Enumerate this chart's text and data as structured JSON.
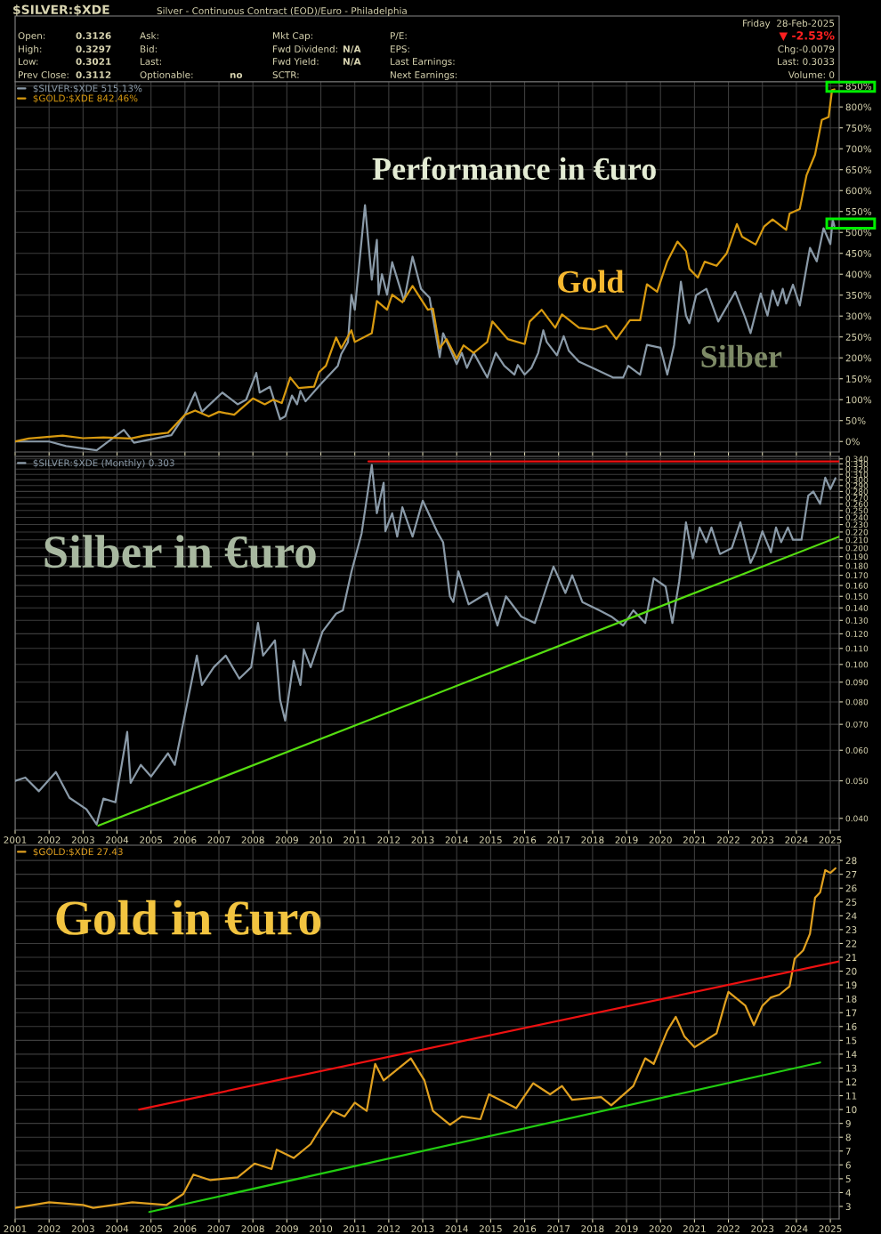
{
  "chart_data": [
    {
      "type": "other",
      "title": "$SILVER:$XDE",
      "subtitle": "Silver - Continuous Contract (EOD)/Euro - Philadelphia",
      "annotations": [
        "Friday  28-Feb-2025",
        "▼ -2.53%",
        "Chg:-0.0079",
        "Last: 0.3033",
        "Volume: 0",
        "Open:",
        "0.3126",
        "High:",
        "0.3297",
        "Low:",
        "0.3021",
        "Prev Close:",
        "0.3112",
        "Ask:",
        "Bid:",
        "Last:",
        "Optionable:",
        "no",
        "Mkt Cap:",
        "Fwd Dividend:",
        "N/A",
        "Fwd Yield:",
        "N/A",
        "SCTR:",
        "P/E:",
        "EPS:",
        "Last Earnings:",
        "Next Earnings:"
      ]
    },
    {
      "type": "line",
      "xlim": [
        2001,
        2025.26
      ],
      "ylim": [
        -25,
        860
      ],
      "xticks": [
        2001,
        2002,
        2003,
        2004,
        2005,
        2006,
        2007,
        2008,
        2009,
        2010,
        2011,
        2012,
        2013,
        2014,
        2015,
        2016,
        2017,
        2018,
        2019,
        2020,
        2021,
        2022,
        2023,
        2024,
        2025
      ],
      "yticks": [
        {
          "value": 0,
          "label": "0%"
        },
        {
          "value": 50,
          "label": "50%"
        },
        {
          "value": 100,
          "label": "100%"
        },
        {
          "value": 150,
          "label": "150%"
        },
        {
          "value": 200,
          "label": "200%"
        },
        {
          "value": 250,
          "label": "250%"
        },
        {
          "value": 300,
          "label": "300%"
        },
        {
          "value": 350,
          "label": "350%"
        },
        {
          "value": 400,
          "label": "400%"
        },
        {
          "value": 450,
          "label": "450%"
        },
        {
          "value": 500,
          "label": "500%"
        },
        {
          "value": 550,
          "label": "550%"
        },
        {
          "value": 600,
          "label": "600%"
        },
        {
          "value": 650,
          "label": "650%"
        },
        {
          "value": 700,
          "label": "700%"
        },
        {
          "value": 750,
          "label": "750%"
        },
        {
          "value": 800,
          "label": "800%"
        },
        {
          "value": 850,
          "label": "850%"
        }
      ],
      "tick_labels": "y",
      "grid": true,
      "legend": "top left",
      "annotations": [
        "Performance in €uro",
        "Gold",
        "Silber"
      ],
      "series": [
        {
          "name": "$SILVER:$XDE 515.13%",
          "color": "#8a9aa8",
          "x": [
            2001.0,
            2002.0,
            2002.5,
            2003.4,
            2004.2,
            2004.5,
            2005.6,
            2006.0,
            2006.3,
            2006.5,
            2007.1,
            2007.55,
            2007.8,
            2008.1,
            2008.2,
            2008.5,
            2008.8,
            2008.95,
            2009.15,
            2009.3,
            2009.4,
            2009.55,
            2010.05,
            2010.5,
            2010.6,
            2010.8,
            2010.9,
            2011.0,
            2011.3,
            2011.5,
            2011.65,
            2011.7,
            2011.8,
            2011.95,
            2012.1,
            2012.45,
            2012.7,
            2012.95,
            2013.2,
            2013.5,
            2013.6,
            2014.0,
            2014.15,
            2014.3,
            2014.5,
            2014.9,
            2015.15,
            2015.4,
            2015.7,
            2015.8,
            2016.0,
            2016.2,
            2016.4,
            2016.55,
            2016.65,
            2016.95,
            2017.15,
            2017.3,
            2017.6,
            2018.0,
            2018.6,
            2018.9,
            2019.05,
            2019.4,
            2019.6,
            2020.0,
            2020.2,
            2020.4,
            2020.6,
            2020.75,
            2020.85,
            2021.05,
            2021.35,
            2021.7,
            2022.2,
            2022.5,
            2022.65,
            2022.95,
            2023.15,
            2023.3,
            2023.45,
            2023.6,
            2023.7,
            2023.9,
            2024.1,
            2024.4,
            2024.6,
            2024.8,
            2025.0,
            2025.07,
            2025.12
          ],
          "values": [
            0,
            0,
            -11,
            -21,
            28,
            -3,
            15,
            64,
            117,
            71,
            117,
            89,
            100,
            164,
            117,
            131,
            53,
            60,
            110,
            89,
            121,
            96,
            142,
            181,
            209,
            238,
            351,
            315,
            565,
            387,
            482,
            351,
            400,
            351,
            429,
            336,
            442,
            365,
            344,
            202,
            259,
            185,
            212,
            176,
            212,
            153,
            212,
            181,
            160,
            183,
            160,
            176,
            212,
            266,
            238,
            206,
            252,
            217,
            191,
            176,
            153,
            153,
            181,
            160,
            231,
            224,
            160,
            231,
            382,
            301,
            283,
            350,
            365,
            287,
            358,
            295,
            259,
            354,
            301,
            361,
            325,
            365,
            330,
            375,
            325,
            463,
            431,
            510,
            472,
            531,
            515
          ]
        },
        {
          "name": "$GOLD:$XDE 842.46%",
          "color": "#d89a10",
          "x": [
            2001.0,
            2001.4,
            2002.4,
            2003.0,
            2003.6,
            2004.4,
            2004.8,
            2005.5,
            2006.0,
            2006.3,
            2006.7,
            2007.0,
            2007.45,
            2008.0,
            2008.35,
            2008.6,
            2008.85,
            2009.1,
            2009.35,
            2009.8,
            2009.95,
            2010.15,
            2010.45,
            2010.6,
            2010.9,
            2011.0,
            2011.5,
            2011.65,
            2011.95,
            2012.1,
            2012.4,
            2012.7,
            2013.15,
            2013.3,
            2013.5,
            2013.7,
            2014.0,
            2014.2,
            2014.5,
            2014.9,
            2015.05,
            2015.5,
            2016.0,
            2016.15,
            2016.5,
            2016.9,
            2017.1,
            2017.6,
            2018.05,
            2018.4,
            2018.7,
            2019.1,
            2019.4,
            2019.6,
            2019.9,
            2020.2,
            2020.5,
            2020.75,
            2020.85,
            2021.1,
            2021.3,
            2021.65,
            2021.95,
            2022.25,
            2022.4,
            2022.8,
            2023.05,
            2023.3,
            2023.7,
            2023.8,
            2024.1,
            2024.3,
            2024.55,
            2024.75,
            2024.95,
            2025.05,
            2025.12
          ],
          "values": [
            0,
            7,
            14,
            8,
            10,
            7,
            14,
            21,
            64,
            74,
            60,
            71,
            64,
            103,
            89,
            100,
            92,
            153,
            128,
            131,
            166,
            181,
            249,
            223,
            266,
            238,
            259,
            336,
            315,
            351,
            333,
            372,
            315,
            318,
            223,
            245,
            198,
            230,
            212,
            238,
            287,
            245,
            233,
            287,
            315,
            272,
            304,
            272,
            268,
            277,
            245,
            290,
            290,
            376,
            358,
            431,
            478,
            455,
            413,
            392,
            430,
            420,
            450,
            520,
            490,
            471,
            514,
            531,
            506,
            545,
            556,
            637,
            686,
            769,
            776,
            840,
            842
          ]
        }
      ]
    },
    {
      "type": "line",
      "log": true,
      "xlim": [
        2001,
        2025.26
      ],
      "ylim": [
        0.0373,
        0.345
      ],
      "xticks": [
        2001,
        2002,
        2003,
        2004,
        2005,
        2006,
        2007,
        2008,
        2009,
        2010,
        2011,
        2012,
        2013,
        2014,
        2015,
        2016,
        2017,
        2018,
        2019,
        2020,
        2021,
        2022,
        2023,
        2024,
        2025
      ],
      "yticks": [
        {
          "value": 0.04,
          "label": "0.040"
        },
        {
          "value": 0.05,
          "label": "0.050"
        },
        {
          "value": 0.06,
          "label": "0.060"
        },
        {
          "value": 0.07,
          "label": "0.070"
        },
        {
          "value": 0.08,
          "label": "0.080"
        },
        {
          "value": 0.09,
          "label": "0.090"
        },
        {
          "value": 0.1,
          "label": "0.100"
        },
        {
          "value": 0.11,
          "label": "0.110"
        },
        {
          "value": 0.12,
          "label": "0.120"
        },
        {
          "value": 0.13,
          "label": "0.130"
        },
        {
          "value": 0.14,
          "label": "0.140"
        },
        {
          "value": 0.15,
          "label": "0.150"
        },
        {
          "value": 0.16,
          "label": "0.160"
        },
        {
          "value": 0.17,
          "label": "0.170"
        },
        {
          "value": 0.18,
          "label": "0.180"
        },
        {
          "value": 0.19,
          "label": "0.190"
        },
        {
          "value": 0.2,
          "label": "0.200"
        },
        {
          "value": 0.21,
          "label": "0.210"
        },
        {
          "value": 0.22,
          "label": "0.220"
        },
        {
          "value": 0.23,
          "label": "0.230"
        },
        {
          "value": 0.24,
          "label": "0.240"
        },
        {
          "value": 0.25,
          "label": "0.250"
        },
        {
          "value": 0.26,
          "label": "0.260"
        },
        {
          "value": 0.27,
          "label": "0.270"
        },
        {
          "value": 0.28,
          "label": "0.280"
        },
        {
          "value": 0.29,
          "label": "0.290"
        },
        {
          "value": 0.3,
          "label": "0.300"
        },
        {
          "value": 0.31,
          "label": "0.310"
        },
        {
          "value": 0.32,
          "label": "0.320"
        },
        {
          "value": 0.33,
          "label": "0.330"
        },
        {
          "value": 0.34,
          "label": "0.340"
        }
      ],
      "grid": true,
      "legend": "top left",
      "annotations": [
        "Silber in €uro"
      ],
      "series": [
        {
          "name": "$SILVER:$XDE (Monthly) 0.303",
          "color": "#8a9aa8",
          "x": [
            2001.0,
            2001.3,
            2001.7,
            2002.2,
            2002.6,
            2003.1,
            2003.4,
            2003.6,
            2003.95,
            2004.3,
            2004.4,
            2004.7,
            2005.0,
            2005.5,
            2005.7,
            2006.0,
            2006.35,
            2006.5,
            2006.85,
            2007.2,
            2007.6,
            2007.95,
            2008.15,
            2008.3,
            2008.65,
            2008.8,
            2008.95,
            2009.2,
            2009.4,
            2009.5,
            2009.7,
            2010.05,
            2010.45,
            2010.65,
            2010.9,
            2011.2,
            2011.5,
            2011.65,
            2011.85,
            2011.9,
            2012.1,
            2012.25,
            2012.4,
            2012.7,
            2013.0,
            2013.45,
            2013.6,
            2013.8,
            2013.9,
            2014.05,
            2014.35,
            2014.9,
            2015.2,
            2015.45,
            2015.9,
            2016.3,
            2016.65,
            2016.85,
            2017.2,
            2017.4,
            2017.7,
            2018.2,
            2018.55,
            2018.9,
            2019.2,
            2019.55,
            2019.8,
            2020.15,
            2020.35,
            2020.55,
            2020.75,
            2020.95,
            2021.15,
            2021.35,
            2021.5,
            2021.75,
            2022.1,
            2022.35,
            2022.65,
            2022.8,
            2023.0,
            2023.25,
            2023.4,
            2023.55,
            2023.75,
            2023.9,
            2024.15,
            2024.35,
            2024.5,
            2024.7,
            2024.85,
            2025.0,
            2025.15
          ],
          "values": [
            0.05,
            0.051,
            0.047,
            0.0527,
            0.0452,
            0.0422,
            0.0386,
            0.045,
            0.044,
            0.0669,
            0.0494,
            0.055,
            0.0513,
            0.0589,
            0.055,
            0.0743,
            0.1054,
            0.0885,
            0.0984,
            0.1054,
            0.0919,
            0.0984,
            0.128,
            0.1054,
            0.1154,
            0.081,
            0.0716,
            0.1021,
            0.0885,
            0.1094,
            0.0984,
            0.1216,
            0.1353,
            0.138,
            0.1735,
            0.218,
            0.328,
            0.246,
            0.295,
            0.221,
            0.246,
            0.214,
            0.255,
            0.214,
            0.265,
            0.218,
            0.207,
            0.15,
            0.145,
            0.174,
            0.143,
            0.153,
            0.126,
            0.15,
            0.133,
            0.128,
            0.159,
            0.179,
            0.153,
            0.17,
            0.145,
            0.138,
            0.133,
            0.126,
            0.138,
            0.128,
            0.167,
            0.159,
            0.128,
            0.164,
            0.233,
            0.188,
            0.226,
            0.207,
            0.226,
            0.193,
            0.2,
            0.233,
            0.183,
            0.195,
            0.221,
            0.195,
            0.226,
            0.207,
            0.226,
            0.21,
            0.21,
            0.273,
            0.28,
            0.26,
            0.304,
            0.284,
            0.303
          ]
        },
        {
          "color": "#55dd11",
          "x": [
            2003.45,
            2025.26
          ],
          "values": [
            0.0383,
            0.214
          ]
        },
        {
          "color": "#ee1111",
          "x": [
            2011.4,
            2025.26
          ],
          "values": [
            0.335,
            0.335
          ]
        }
      ]
    },
    {
      "type": "line",
      "xlim": [
        2001,
        2025.26
      ],
      "ylim": [
        2.1,
        29.1
      ],
      "xticks": [
        2001,
        2002,
        2003,
        2004,
        2005,
        2006,
        2007,
        2008,
        2009,
        2010,
        2011,
        2012,
        2013,
        2014,
        2015,
        2016,
        2017,
        2018,
        2019,
        2020,
        2021,
        2022,
        2023,
        2024,
        2025
      ],
      "yticks": [
        3,
        4,
        5,
        6,
        7,
        8,
        9,
        10,
        11,
        12,
        13,
        14,
        15,
        16,
        17,
        18,
        19,
        20,
        21,
        22,
        23,
        24,
        25,
        26,
        27,
        28
      ],
      "grid": true,
      "legend": "top left",
      "annotations": [
        "Gold in €uro"
      ],
      "series": [
        {
          "name": "$GOLD:$XDE 27.43",
          "color": "#e0a020",
          "x": [
            2001.0,
            2002.0,
            2003.0,
            2003.3,
            2004.45,
            2005.45,
            2005.95,
            2006.25,
            2006.75,
            2007.55,
            2008.05,
            2008.55,
            2008.7,
            2009.2,
            2009.7,
            2009.95,
            2010.35,
            2010.7,
            2011.0,
            2011.35,
            2011.6,
            2011.85,
            2012.65,
            2013.05,
            2013.3,
            2013.8,
            2014.15,
            2014.7,
            2014.95,
            2015.75,
            2016.25,
            2016.75,
            2017.1,
            2017.4,
            2018.25,
            2018.55,
            2019.2,
            2019.55,
            2019.8,
            2020.2,
            2020.45,
            2020.7,
            2021.0,
            2021.65,
            2021.9,
            2022.0,
            2022.5,
            2022.75,
            2023.0,
            2023.25,
            2023.5,
            2023.8,
            2023.95,
            2024.2,
            2024.4,
            2024.55,
            2024.7,
            2024.85,
            2025.0,
            2025.15
          ],
          "values": [
            2.9,
            3.3,
            3.1,
            2.9,
            3.3,
            3.1,
            3.9,
            5.3,
            4.9,
            5.1,
            6.1,
            5.7,
            7.1,
            6.5,
            7.5,
            8.5,
            9.9,
            9.5,
            10.5,
            9.9,
            13.3,
            12.1,
            13.7,
            12.1,
            9.9,
            8.9,
            9.5,
            9.3,
            11.1,
            10.1,
            11.9,
            11.1,
            11.7,
            10.7,
            10.9,
            10.3,
            11.7,
            13.7,
            13.3,
            15.7,
            16.7,
            15.3,
            14.5,
            15.5,
            17.7,
            18.5,
            17.5,
            16.1,
            17.5,
            18.1,
            18.3,
            18.9,
            20.9,
            21.5,
            22.7,
            25.3,
            25.7,
            27.3,
            27.1,
            27.43
          ]
        },
        {
          "color": "#ee1111",
          "x": [
            2004.65,
            2025.26
          ],
          "values": [
            10.0,
            20.7
          ]
        },
        {
          "color": "#22cc11",
          "x": [
            2004.95,
            2024.7
          ],
          "values": [
            2.6,
            13.4
          ]
        }
      ]
    }
  ]
}
